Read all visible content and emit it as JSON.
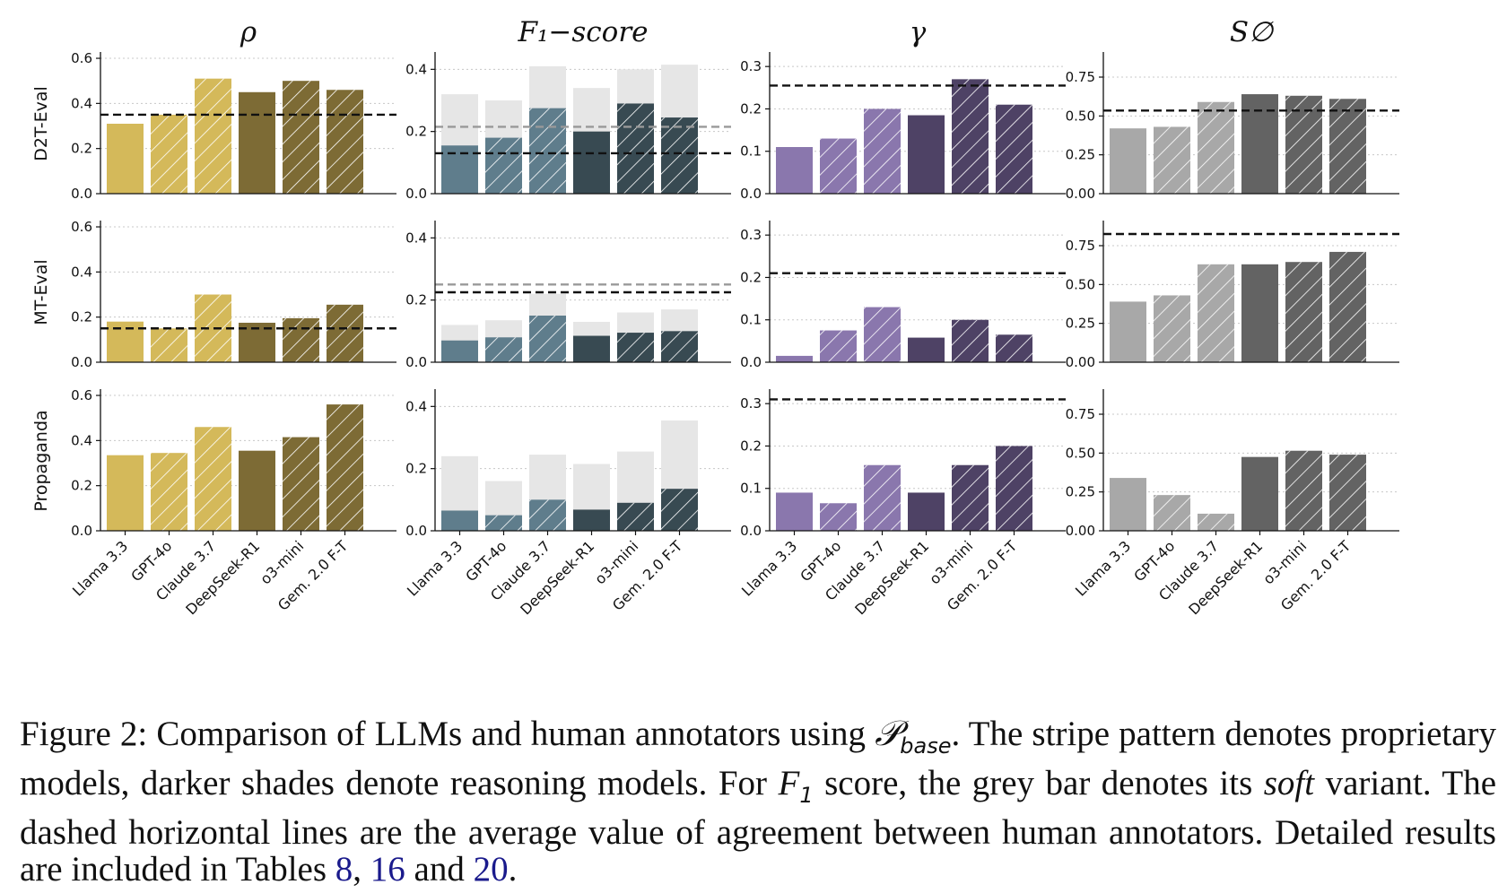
{
  "chart_data": {
    "type": "bar",
    "categories": [
      "Llama 3.3",
      "GPT-4o",
      "Claude 3.7",
      "DeepSeek-R1",
      "o3-mini",
      "Gem. 2.0 F-T"
    ],
    "proprietary": [
      false,
      true,
      true,
      false,
      true,
      true
    ],
    "reasoning": [
      false,
      false,
      false,
      true,
      true,
      true
    ],
    "rows": [
      "D2T-Eval",
      "MT-Eval",
      "Propaganda"
    ],
    "columns": [
      {
        "key": "rho",
        "title": "ρ"
      },
      {
        "key": "f1",
        "title": "F₁−score"
      },
      {
        "key": "gamma",
        "title": "γ"
      },
      {
        "key": "s",
        "title": "S∅"
      }
    ],
    "colors": {
      "rho": {
        "light": "#d4b95a",
        "dark": "#7d6b35"
      },
      "f1": {
        "light": "#5f7d8c",
        "dark": "#384a52",
        "soft": "#e6e6e6"
      },
      "gamma": {
        "light": "#8a77ad",
        "dark": "#4e4265"
      },
      "s": {
        "light": "#a8a8a8",
        "dark": "#636363"
      }
    },
    "panels": [
      {
        "row": "D2T-Eval",
        "col": "rho",
        "ylim": [
          0,
          0.62
        ],
        "ticks": [
          "0.0",
          "0.2",
          "0.4",
          "0.6"
        ],
        "tick_values": [
          0,
          0.2,
          0.4,
          0.6
        ],
        "values": [
          0.31,
          0.35,
          0.51,
          0.45,
          0.5,
          0.46
        ],
        "human": [
          0.35
        ]
      },
      {
        "row": "D2T-Eval",
        "col": "f1",
        "ylim": [
          0,
          0.45
        ],
        "ticks": [
          "0.0",
          "0.2",
          "0.4"
        ],
        "tick_values": [
          0,
          0.2,
          0.4
        ],
        "values": [
          0.155,
          0.18,
          0.275,
          0.2,
          0.29,
          0.245
        ],
        "soft": [
          0.32,
          0.3,
          0.41,
          0.34,
          0.4,
          0.415
        ],
        "human": [
          0.13
        ],
        "human_soft": [
          0.215
        ]
      },
      {
        "row": "D2T-Eval",
        "col": "gamma",
        "ylim": [
          0,
          0.33
        ],
        "ticks": [
          "0.0",
          "0.1",
          "0.2",
          "0.3"
        ],
        "tick_values": [
          0,
          0.1,
          0.2,
          0.3
        ],
        "values": [
          0.11,
          0.13,
          0.2,
          0.185,
          0.27,
          0.21
        ],
        "human": [
          0.255
        ]
      },
      {
        "row": "D2T-Eval",
        "col": "s",
        "ylim": [
          0,
          0.9
        ],
        "ticks": [
          "0.00",
          "0.25",
          "0.50",
          "0.75"
        ],
        "tick_values": [
          0,
          0.25,
          0.5,
          0.75
        ],
        "values": [
          0.42,
          0.43,
          0.59,
          0.64,
          0.63,
          0.61
        ],
        "human": [
          0.535
        ]
      },
      {
        "row": "MT-Eval",
        "col": "rho",
        "ylim": [
          0,
          0.62
        ],
        "ticks": [
          "0.0",
          "0.2",
          "0.4",
          "0.6"
        ],
        "tick_values": [
          0,
          0.2,
          0.4,
          0.6
        ],
        "values": [
          0.18,
          0.15,
          0.3,
          0.175,
          0.195,
          0.255
        ],
        "human": [
          0.15
        ]
      },
      {
        "row": "MT-Eval",
        "col": "f1",
        "ylim": [
          0,
          0.45
        ],
        "ticks": [
          "0.0",
          "0.2",
          "0.4"
        ],
        "tick_values": [
          0,
          0.2,
          0.4
        ],
        "values": [
          0.07,
          0.08,
          0.15,
          0.085,
          0.095,
          0.1
        ],
        "soft": [
          0.12,
          0.135,
          0.22,
          0.13,
          0.16,
          0.17
        ],
        "human": [
          0.225
        ],
        "human_soft": [
          0.25
        ]
      },
      {
        "row": "MT-Eval",
        "col": "gamma",
        "ylim": [
          0,
          0.33
        ],
        "ticks": [
          "0.0",
          "0.1",
          "0.2",
          "0.3"
        ],
        "tick_values": [
          0,
          0.1,
          0.2,
          0.3
        ],
        "values": [
          0.015,
          0.075,
          0.13,
          0.058,
          0.1,
          0.065
        ],
        "human": [
          0.21
        ]
      },
      {
        "row": "MT-Eval",
        "col": "s",
        "ylim": [
          0,
          0.9
        ],
        "ticks": [
          "0.00",
          "0.25",
          "0.50",
          "0.75"
        ],
        "tick_values": [
          0,
          0.25,
          0.5,
          0.75
        ],
        "values": [
          0.39,
          0.43,
          0.63,
          0.63,
          0.645,
          0.71
        ],
        "human": [
          0.825
        ]
      },
      {
        "row": "Propaganda",
        "col": "rho",
        "ylim": [
          0,
          0.62
        ],
        "ticks": [
          "0.0",
          "0.2",
          "0.4",
          "0.6"
        ],
        "tick_values": [
          0,
          0.2,
          0.4,
          0.6
        ],
        "values": [
          0.335,
          0.345,
          0.46,
          0.355,
          0.415,
          0.56
        ],
        "human": []
      },
      {
        "row": "Propaganda",
        "col": "f1",
        "ylim": [
          0,
          0.45
        ],
        "ticks": [
          "0.0",
          "0.2",
          "0.4"
        ],
        "tick_values": [
          0,
          0.2,
          0.4
        ],
        "values": [
          0.065,
          0.05,
          0.1,
          0.068,
          0.09,
          0.135
        ],
        "soft": [
          0.24,
          0.16,
          0.245,
          0.215,
          0.255,
          0.355
        ],
        "human": [],
        "human_soft": []
      },
      {
        "row": "Propaganda",
        "col": "gamma",
        "ylim": [
          0,
          0.33
        ],
        "ticks": [
          "0.0",
          "0.1",
          "0.2",
          "0.3"
        ],
        "tick_values": [
          0,
          0.1,
          0.2,
          0.3
        ],
        "values": [
          0.09,
          0.065,
          0.155,
          0.09,
          0.155,
          0.2
        ],
        "human": [
          0.31
        ]
      },
      {
        "row": "Propaganda",
        "col": "s",
        "ylim": [
          0,
          0.9
        ],
        "ticks": [
          "0.00",
          "0.25",
          "0.50",
          "0.75"
        ],
        "tick_values": [
          0,
          0.25,
          0.5,
          0.75
        ],
        "values": [
          0.34,
          0.23,
          0.11,
          0.475,
          0.515,
          0.49
        ],
        "human": []
      }
    ]
  },
  "caption": {
    "label": "Figure 2:",
    "part1": "Comparison of LLMs and human annotators using",
    "symbol": "𝒫",
    "subscript": "base",
    "part2": ". The stripe pattern denotes proprietary models, darker shades denote reasoning models. For",
    "f1_symbol": "F",
    "f1_sub": "1",
    "part3": "score, the grey bar denotes its",
    "soft_word": "soft",
    "part4": "variant. The dashed horizontal lines are the average value of agreement between human annotators. Detailed results are included in Tables",
    "ref1": "8",
    "sep1": ",",
    "ref2": "16",
    "and_word": "and",
    "ref3": "20",
    "end": "."
  }
}
